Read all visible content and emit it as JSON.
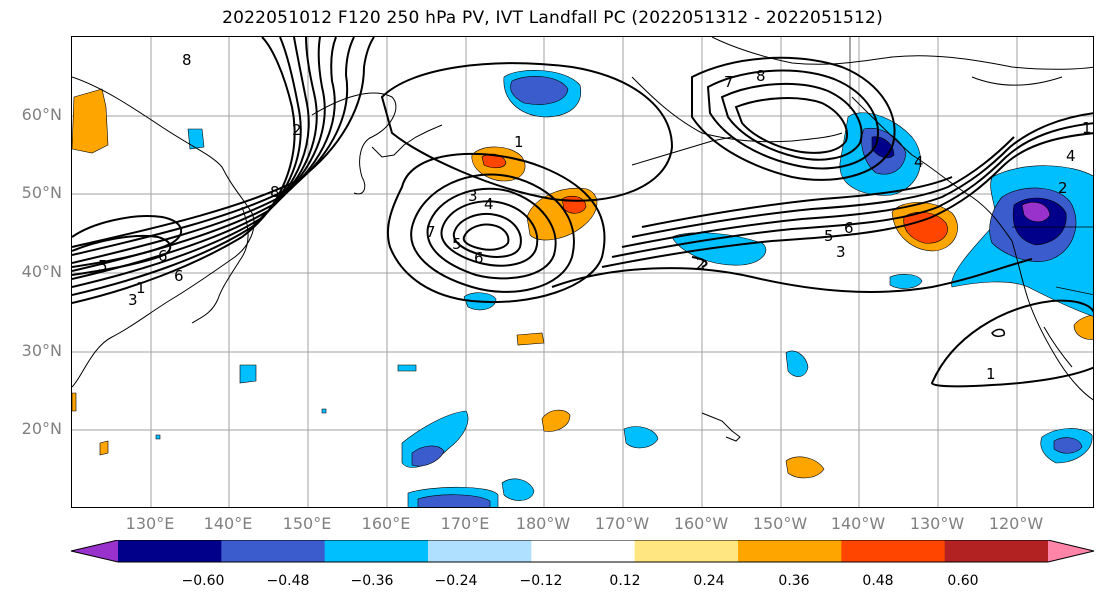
{
  "title": "2022051012 F120 250 hPa PV, IVT Landfall PC (2022051312 - 2022051512)",
  "lat_labels": [
    "60°N",
    "50°N",
    "40°N",
    "30°N",
    "20°N"
  ],
  "lon_labels": [
    "130°E",
    "140°E",
    "150°E",
    "160°E",
    "170°E",
    "180°W",
    "170°W",
    "160°W",
    "150°W",
    "140°W",
    "130°W",
    "120°W"
  ],
  "contour_labels": [
    "8",
    "1",
    "7",
    "8",
    "2",
    "8",
    "1",
    "3",
    "4",
    "7",
    "5",
    "6",
    "5",
    "6",
    "3",
    "6",
    "6",
    "2",
    "5",
    "3",
    "4",
    "2",
    "4",
    "1",
    "1"
  ],
  "colorbar": {
    "colors": [
      "#9932cc",
      "#00008b",
      "#3a5ccc",
      "#00bfff",
      "#b0e0ff",
      "#ffffff",
      "#ffe680",
      "#ffa500",
      "#ff4500",
      "#b22222",
      "#ff85a8"
    ],
    "ticks": [
      "−0.60",
      "−0.48",
      "−0.36",
      "−0.24",
      "−0.12",
      "0.12",
      "0.24",
      "0.36",
      "0.48",
      "0.60"
    ]
  },
  "colors": {
    "contour": "#000000",
    "coast": "#000000",
    "grid": "#a0a0a0",
    "axis_label": "#808080"
  }
}
